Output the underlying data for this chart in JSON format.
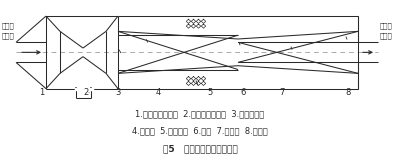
{
  "title": "图5   低噪音热能压缩器简图",
  "label_left": "混合汽\n进口管",
  "label_right": "混合汽\n出口管",
  "caption1": "1.引射蒸汽入口管  2.吸入二次蒸汽管  3.拉伐尔喷嘴",
  "caption2": "4.混合段  5.消音填料  6.喉部  7.消音室  8.扩张段",
  "bg_color": "#ffffff",
  "line_color": "#2a2a2a",
  "dash_color": "#aaaaaa",
  "figsize": [
    4.0,
    1.54
  ],
  "dpi": 100,
  "num_labels": [
    [
      42,
      3.5,
      "1"
    ],
    [
      86,
      3.5,
      "2"
    ],
    [
      118,
      3.5,
      "3"
    ],
    [
      158,
      3.5,
      "4"
    ],
    [
      210,
      3.5,
      "5"
    ],
    [
      243,
      3.5,
      "6"
    ],
    [
      282,
      3.5,
      "7"
    ],
    [
      348,
      3.5,
      "8"
    ]
  ]
}
